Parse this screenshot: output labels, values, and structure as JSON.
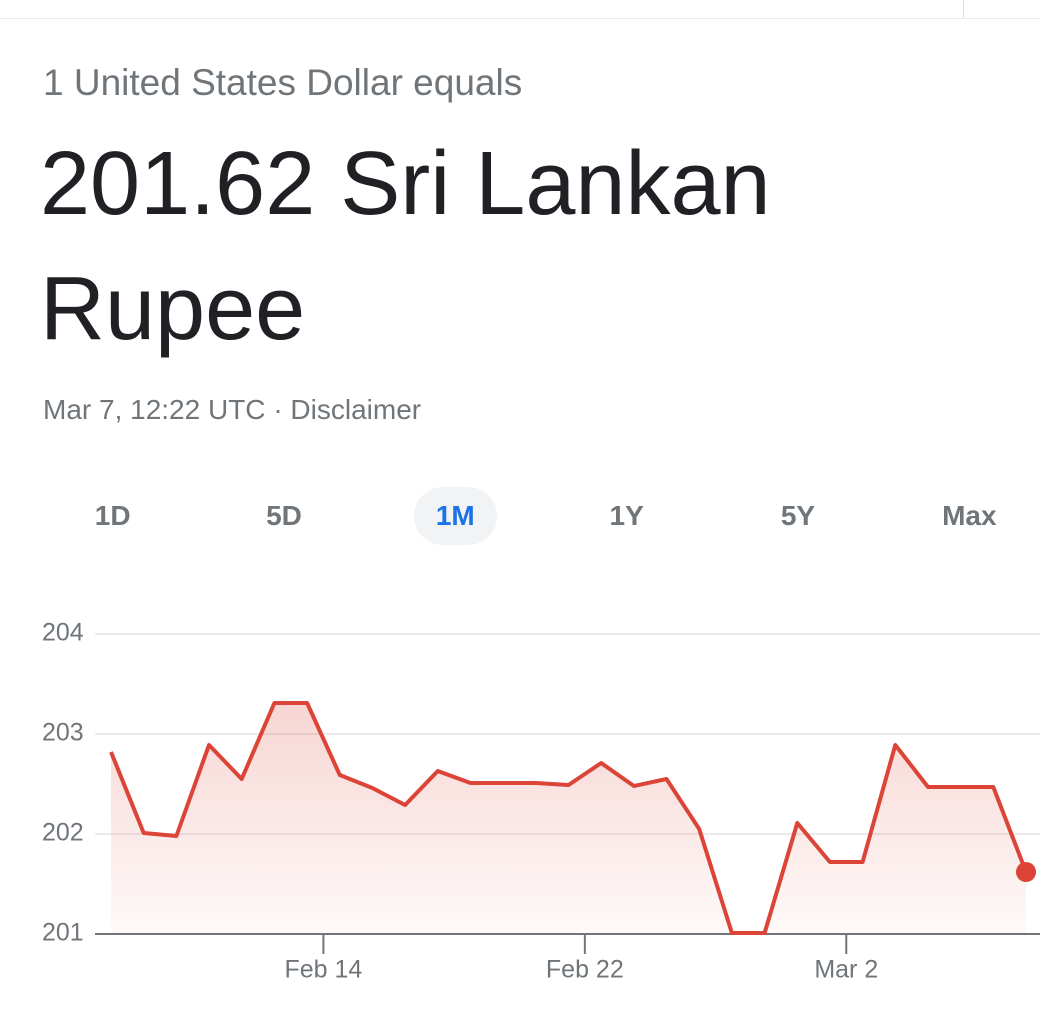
{
  "header": {
    "intro": "1 United States Dollar equals",
    "result": "201.62 Sri Lankan Rupee",
    "timestamp": "Mar 7, 12:22 UTC",
    "separator": "·",
    "disclaimer": "Disclaimer"
  },
  "tabs": {
    "items": [
      "1D",
      "5D",
      "1M",
      "1Y",
      "5Y",
      "Max"
    ],
    "selected": "1M"
  },
  "chart_data": {
    "type": "line",
    "color": "#db4437",
    "values": [
      202.82,
      202.01,
      201.98,
      202.89,
      202.55,
      203.31,
      203.31,
      202.59,
      202.46,
      202.29,
      202.63,
      202.51,
      202.51,
      202.51,
      202.49,
      202.71,
      202.48,
      202.55,
      202.05,
      201.01,
      201.01,
      202.11,
      201.72,
      201.72,
      202.89,
      202.47,
      202.47,
      202.47,
      201.62
    ],
    "xlim": [
      0,
      28
    ],
    "xticks": [
      {
        "value": 6.5,
        "label": "Feb 14"
      },
      {
        "value": 14.5,
        "label": "Feb 22"
      },
      {
        "value": 22.5,
        "label": "Mar 2"
      }
    ],
    "ylim": [
      201,
      204
    ],
    "yticks": [
      201,
      202,
      203,
      204
    ],
    "grid": true
  }
}
